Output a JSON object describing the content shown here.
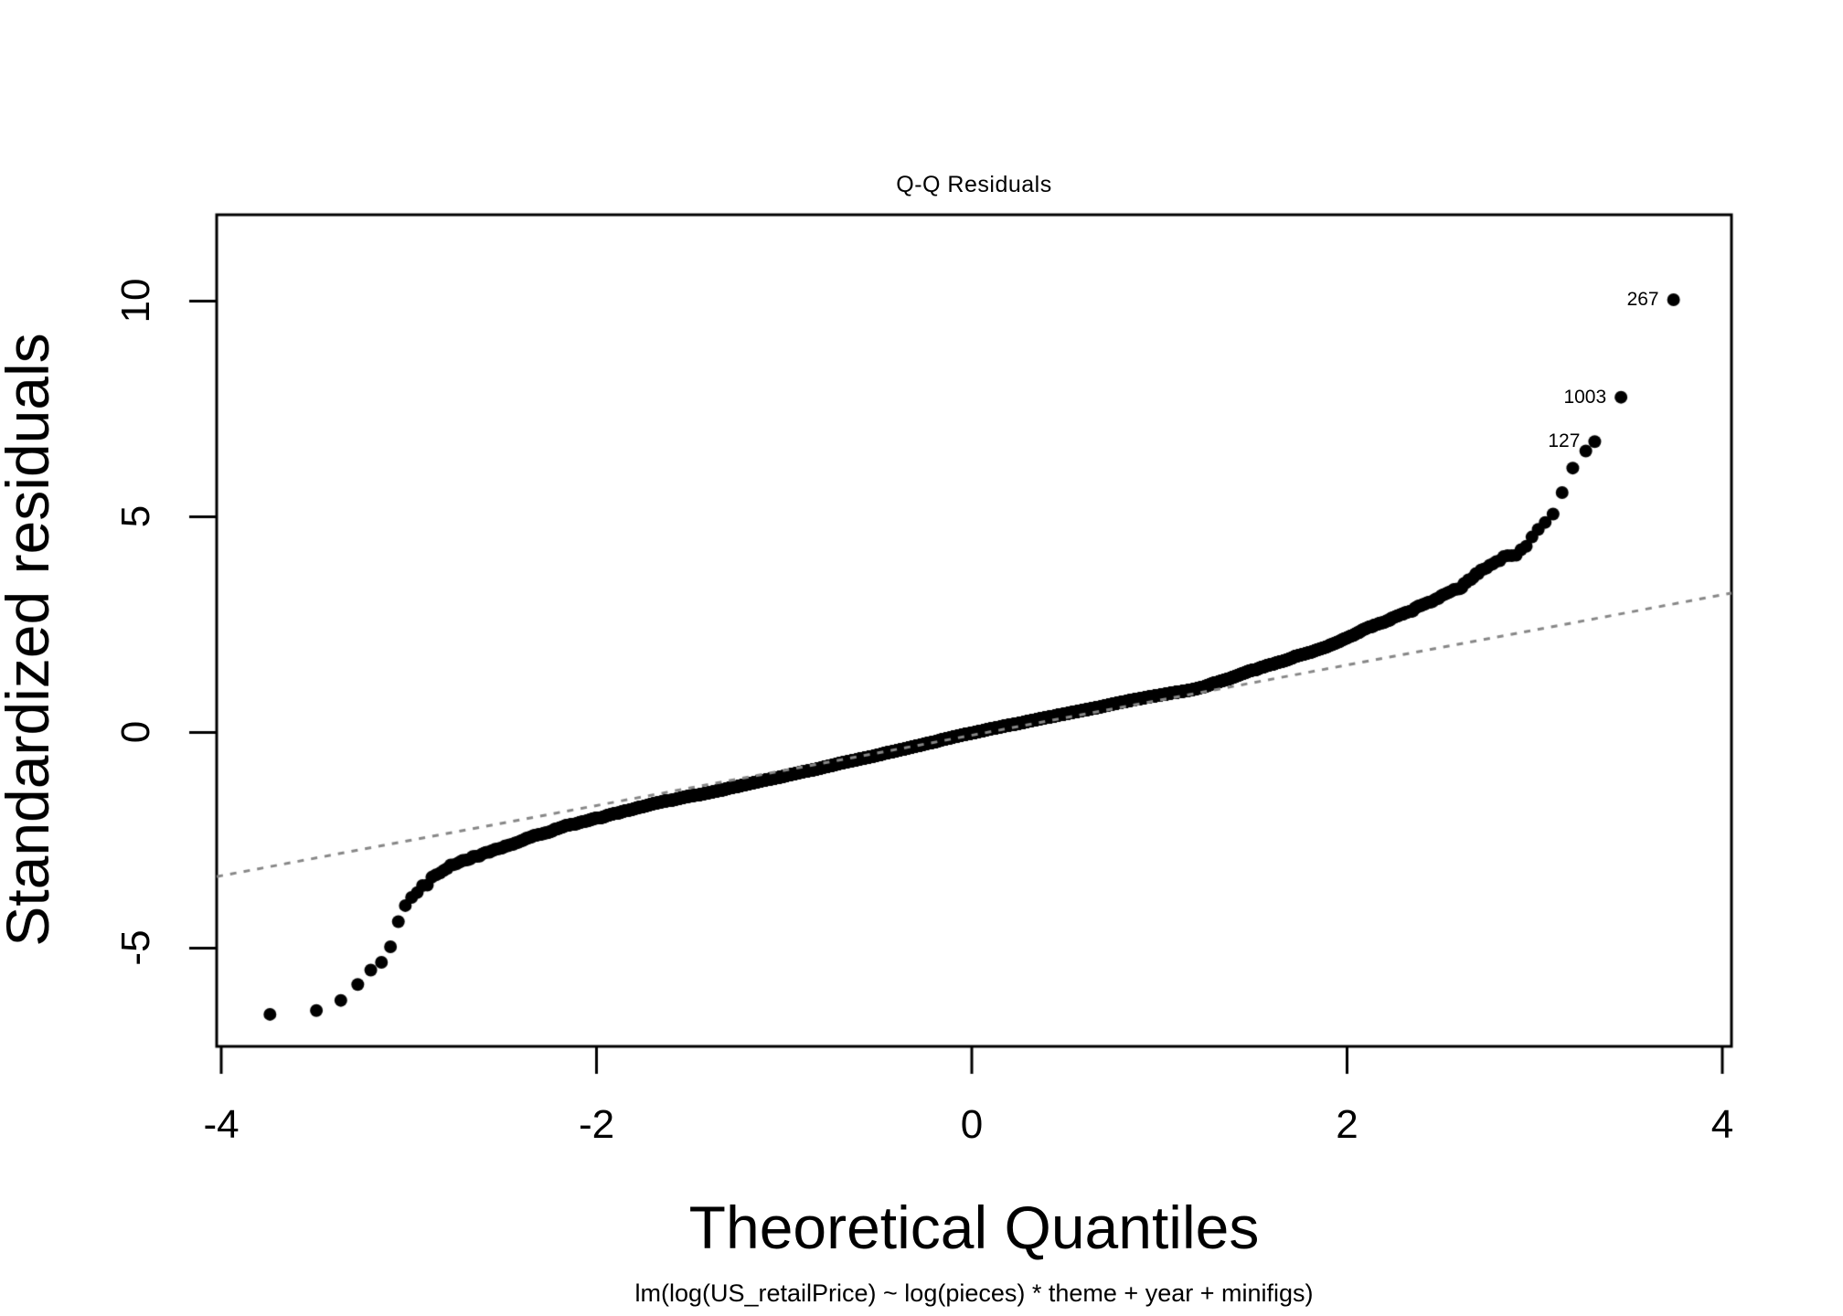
{
  "page": {
    "background": "#ffffff"
  },
  "chart_data": {
    "type": "scatter",
    "subtype": "qq-normal-plot",
    "title": "Q-Q Residuals",
    "xlabel": "Theoretical Quantiles",
    "ylabel": "Standardized residuals",
    "caption": "lm(log(US_retailPrice) ~ log(pieces) * theme + year + minifigs)",
    "x_ticks": [
      -4,
      -2,
      0,
      2,
      4
    ],
    "y_ticks": [
      -5,
      0,
      5,
      10
    ],
    "xlim": [
      -4.03,
      4.05
    ],
    "ylim": [
      -7.3,
      12.0
    ],
    "grid": "off",
    "point_color": "#000000",
    "background_color": "#ffffff",
    "axis_color": "#000000",
    "ref_line": {
      "style": "dashed",
      "color": "#878787",
      "slope": 0.814,
      "intercept": -0.067
    },
    "n_points": 6800,
    "curve_samples": [
      [
        -3.74,
        -6.58
      ],
      [
        -3.45,
        -6.41
      ],
      [
        -3.32,
        -6.16
      ],
      [
        -3.22,
        -5.52
      ],
      [
        -3.14,
        -5.35
      ],
      [
        -3.08,
        -4.78
      ],
      [
        -3.04,
        -3.97
      ],
      [
        -3.0,
        -3.85
      ],
      [
        -2.96,
        -3.74
      ],
      [
        -2.92,
        -3.52
      ],
      [
        -2.89,
        -3.4
      ],
      [
        -2.84,
        -3.22
      ],
      [
        -2.78,
        -3.1
      ],
      [
        -2.7,
        -2.97
      ],
      [
        -2.6,
        -2.83
      ],
      [
        -2.46,
        -2.58
      ],
      [
        -2.3,
        -2.36
      ],
      [
        -2.15,
        -2.16
      ],
      [
        -2.05,
        -2.05
      ],
      [
        -1.85,
        -1.83
      ],
      [
        -1.65,
        -1.6
      ],
      [
        -1.45,
        -1.44
      ],
      [
        -1.25,
        -1.25
      ],
      [
        -1.05,
        -1.06
      ],
      [
        -0.85,
        -0.87
      ],
      [
        -0.65,
        -0.67
      ],
      [
        -0.45,
        -0.47
      ],
      [
        -0.25,
        -0.27
      ],
      [
        -0.05,
        -0.06
      ],
      [
        0.15,
        0.12
      ],
      [
        0.35,
        0.3
      ],
      [
        0.55,
        0.47
      ],
      [
        0.75,
        0.65
      ],
      [
        0.95,
        0.84
      ],
      [
        1.18,
        0.97
      ],
      [
        1.44,
        1.35
      ],
      [
        1.7,
        1.72
      ],
      [
        1.92,
        2.02
      ],
      [
        2.12,
        2.43
      ],
      [
        2.4,
        2.93
      ],
      [
        2.61,
        3.36
      ],
      [
        2.8,
        3.95
      ],
      [
        2.9,
        4.15
      ],
      [
        2.95,
        4.3
      ],
      [
        3.01,
        4.61
      ],
      [
        3.05,
        4.84
      ],
      [
        3.1,
        4.99
      ],
      [
        3.16,
        5.79
      ],
      [
        3.23,
        6.41
      ],
      [
        3.32,
        6.74
      ],
      [
        3.46,
        7.77
      ],
      [
        3.74,
        10.03
      ]
    ],
    "labeled_points": [
      {
        "label": "267",
        "x": 3.74,
        "y": 10.03
      },
      {
        "label": "1003",
        "x": 3.46,
        "y": 7.77
      },
      {
        "label": "127",
        "x": 3.32,
        "y": 6.74
      }
    ]
  }
}
